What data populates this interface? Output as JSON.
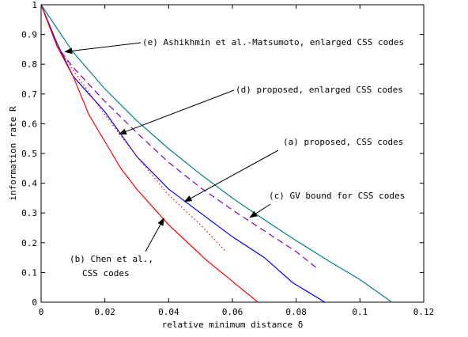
{
  "chart_data": {
    "type": "line",
    "xlabel": "relative minimum distance δ",
    "ylabel": "information rate R",
    "xlim": [
      0,
      0.12
    ],
    "ylim": [
      0,
      1
    ],
    "xticks": [
      0,
      0.02,
      0.04,
      0.06,
      0.08,
      0.1,
      0.12
    ],
    "xtick_labels": [
      "0",
      "0.02",
      "0.04",
      "0.06",
      "0.08",
      "0.1",
      "0.12"
    ],
    "yticks": [
      0,
      0.1,
      0.2,
      0.3,
      0.4,
      0.5,
      0.6,
      0.7,
      0.8,
      0.9,
      1
    ],
    "ytick_labels": [
      "0",
      "0.1",
      "0.2",
      "0.3",
      "0.4",
      "0.5",
      "0.6",
      "0.7",
      "0.8",
      "0.9",
      "1"
    ],
    "grid": false,
    "series": [
      {
        "id": "c",
        "color": "#008080",
        "dash": "solid",
        "points": [
          [
            0,
            1.0
          ],
          [
            0.01,
            0.841
          ],
          [
            0.02,
            0.717
          ],
          [
            0.03,
            0.61
          ],
          [
            0.04,
            0.516
          ],
          [
            0.05,
            0.43
          ],
          [
            0.06,
            0.35
          ],
          [
            0.07,
            0.277
          ],
          [
            0.08,
            0.207
          ],
          [
            0.09,
            0.14
          ],
          [
            0.1,
            0.076
          ],
          [
            0.11,
            0.0
          ]
        ]
      },
      {
        "id": "d",
        "color": "#8000c0",
        "dash": "dashed",
        "points": [
          [
            0,
            1.0
          ],
          [
            0.005,
            0.86
          ],
          [
            0.01,
            0.79
          ],
          [
            0.02,
            0.675
          ],
          [
            0.03,
            0.57
          ],
          [
            0.04,
            0.47
          ],
          [
            0.05,
            0.385
          ],
          [
            0.06,
            0.31
          ],
          [
            0.07,
            0.24
          ],
          [
            0.08,
            0.17
          ],
          [
            0.087,
            0.11
          ]
        ]
      },
      {
        "id": "a",
        "color": "#0000ff",
        "dash": "solid",
        "points": [
          [
            0,
            1.0
          ],
          [
            0.005,
            0.87
          ],
          [
            0.01,
            0.76
          ],
          [
            0.02,
            0.64
          ],
          [
            0.03,
            0.49
          ],
          [
            0.04,
            0.38
          ],
          [
            0.045,
            0.34
          ],
          [
            0.06,
            0.22
          ],
          [
            0.07,
            0.15
          ],
          [
            0.079,
            0.065
          ],
          [
            0.089,
            0.0
          ]
        ]
      },
      {
        "id": "b",
        "color": "#ff0000",
        "dash": "solid",
        "points": [
          [
            0,
            1.0
          ],
          [
            0.005,
            0.86
          ],
          [
            0.01,
            0.76
          ],
          [
            0.015,
            0.63
          ],
          [
            0.02,
            0.54
          ],
          [
            0.025,
            0.45
          ],
          [
            0.03,
            0.38
          ],
          [
            0.04,
            0.26
          ],
          [
            0.045,
            0.21
          ],
          [
            0.052,
            0.14
          ],
          [
            0.06,
            0.07
          ],
          [
            0.068,
            0.0
          ]
        ]
      },
      {
        "id": "e",
        "color": "#ff0000",
        "dash": "dotted",
        "points": [
          [
            0.007,
            0.83
          ],
          [
            0.01,
            0.78
          ],
          [
            0.02,
            0.63
          ],
          [
            0.03,
            0.49
          ],
          [
            0.04,
            0.36
          ],
          [
            0.05,
            0.26
          ],
          [
            0.058,
            0.17
          ]
        ]
      }
    ],
    "annotations": [
      {
        "id": "e",
        "text": "(e) Ashikhmin et al.-Matsumoto, enlarged CSS codes",
        "arrow_to": [
          0.0075,
          0.842
        ]
      },
      {
        "id": "d",
        "text": "(d) proposed, enlarged CSS codes",
        "arrow_to": [
          0.0245,
          0.565
        ]
      },
      {
        "id": "a",
        "text": "(a) proposed, CSS codes",
        "arrow_to": [
          0.045,
          0.338
        ]
      },
      {
        "id": "c",
        "text": "(c) GV bound for CSS codes",
        "arrow_to": [
          0.0655,
          0.285
        ]
      },
      {
        "id": "b1",
        "text": "(b) Chen et al.,",
        "arrow_to": [
          0.0385,
          0.282
        ]
      },
      {
        "id": "b2",
        "text": "CSS codes"
      }
    ]
  }
}
